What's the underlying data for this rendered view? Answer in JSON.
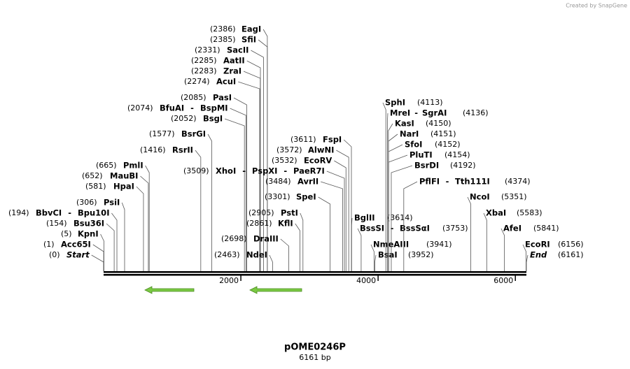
{
  "header": {
    "credit": "Created by SnapGene"
  },
  "map": {
    "title": "pOME0246P",
    "length_label": "6161 bp",
    "length": 6161,
    "separator": "-",
    "ticks": [
      2000,
      4000,
      6000
    ],
    "enzymes": [
      {
        "names": [
          "Start"
        ],
        "pos": 0,
        "pos_label": "(0)"
      },
      {
        "names": [
          "Acc65I"
        ],
        "pos": 1,
        "pos_label": "(1)"
      },
      {
        "names": [
          "KpnI"
        ],
        "pos": 5,
        "pos_label": "(5)"
      },
      {
        "names": [
          "Bsu36I"
        ],
        "pos": 154,
        "pos_label": "(154)"
      },
      {
        "names": [
          "BbvCI",
          "Bpu10I"
        ],
        "pos": 194,
        "pos_label": "(194)"
      },
      {
        "names": [
          "PsiI"
        ],
        "pos": 306,
        "pos_label": "(306)"
      },
      {
        "names": [
          "HpaI"
        ],
        "pos": 581,
        "pos_label": "(581)"
      },
      {
        "names": [
          "MauBI"
        ],
        "pos": 652,
        "pos_label": "(652)"
      },
      {
        "names": [
          "PmlI"
        ],
        "pos": 665,
        "pos_label": "(665)"
      },
      {
        "names": [
          "RsrII"
        ],
        "pos": 1416,
        "pos_label": "(1416)"
      },
      {
        "names": [
          "BsrGI"
        ],
        "pos": 1577,
        "pos_label": "(1577)"
      },
      {
        "names": [
          "BsgI"
        ],
        "pos": 2052,
        "pos_label": "(2052)"
      },
      {
        "names": [
          "BfuAI",
          "BspMI"
        ],
        "pos": 2074,
        "pos_label": "(2074)"
      },
      {
        "names": [
          "PasI"
        ],
        "pos": 2085,
        "pos_label": "(2085)"
      },
      {
        "names": [
          "AcuI"
        ],
        "pos": 2274,
        "pos_label": "(2274)"
      },
      {
        "names": [
          "ZraI"
        ],
        "pos": 2283,
        "pos_label": "(2283)"
      },
      {
        "names": [
          "AatII"
        ],
        "pos": 2285,
        "pos_label": "(2285)"
      },
      {
        "names": [
          "SacII"
        ],
        "pos": 2331,
        "pos_label": "(2331)"
      },
      {
        "names": [
          "SfiI"
        ],
        "pos": 2385,
        "pos_label": "(2385)"
      },
      {
        "names": [
          "EagI"
        ],
        "pos": 2386,
        "pos_label": "(2386)"
      },
      {
        "names": [
          "NdeI"
        ],
        "pos": 2463,
        "pos_label": "(2463)"
      },
      {
        "names": [
          "DraIII"
        ],
        "pos": 2698,
        "pos_label": "(2698)"
      },
      {
        "names": [
          "KflI"
        ],
        "pos": 2861,
        "pos_label": "(2861)"
      },
      {
        "names": [
          "PstI"
        ],
        "pos": 2905,
        "pos_label": "(2905)"
      },
      {
        "names": [
          "SpeI"
        ],
        "pos": 3301,
        "pos_label": "(3301)"
      },
      {
        "names": [
          "AvrII"
        ],
        "pos": 3484,
        "pos_label": "(3484)"
      },
      {
        "names": [
          "XhoI",
          "PspXI",
          "PaeR7I"
        ],
        "pos": 3509,
        "pos_label": "(3509)"
      },
      {
        "names": [
          "EcoRV"
        ],
        "pos": 3532,
        "pos_label": "(3532)"
      },
      {
        "names": [
          "AlwNI"
        ],
        "pos": 3572,
        "pos_label": "(3572)"
      },
      {
        "names": [
          "FspI"
        ],
        "pos": 3611,
        "pos_label": "(3611)"
      },
      {
        "names": [
          "BglII"
        ],
        "pos": 3614,
        "pos_label": "(3614)"
      },
      {
        "names": [
          "BssSI",
          "BssSαI"
        ],
        "pos": 3753,
        "pos_label": "(3753)"
      },
      {
        "names": [
          "NmeAIII"
        ],
        "pos": 3941,
        "pos_label": "(3941)"
      },
      {
        "names": [
          "BsaI"
        ],
        "pos": 3952,
        "pos_label": "(3952)"
      },
      {
        "names": [
          "SphI"
        ],
        "pos": 4113,
        "pos_label": "(4113)"
      },
      {
        "names": [
          "MreI",
          "SgrAI"
        ],
        "pos": 4136,
        "pos_label": "(4136)"
      },
      {
        "names": [
          "KasI"
        ],
        "pos": 4150,
        "pos_label": "(4150)"
      },
      {
        "names": [
          "NarI"
        ],
        "pos": 4151,
        "pos_label": "(4151)"
      },
      {
        "names": [
          "SfoI"
        ],
        "pos": 4152,
        "pos_label": "(4152)"
      },
      {
        "names": [
          "PluTI"
        ],
        "pos": 4154,
        "pos_label": "(4154)"
      },
      {
        "names": [
          "BsrDI"
        ],
        "pos": 4192,
        "pos_label": "(4192)"
      },
      {
        "names": [
          "PflFI",
          "Tth111I"
        ],
        "pos": 4374,
        "pos_label": "(4374)"
      },
      {
        "names": [
          "NcoI"
        ],
        "pos": 5351,
        "pos_label": "(5351)"
      },
      {
        "names": [
          "XbaI"
        ],
        "pos": 5583,
        "pos_label": "(5583)"
      },
      {
        "names": [
          "AfeI"
        ],
        "pos": 5841,
        "pos_label": "(5841)"
      },
      {
        "names": [
          "EcoRI"
        ],
        "pos": 6156,
        "pos_label": "(6156)"
      },
      {
        "names": [
          "End"
        ],
        "pos": 6161,
        "pos_label": "(6161)"
      }
    ]
  }
}
